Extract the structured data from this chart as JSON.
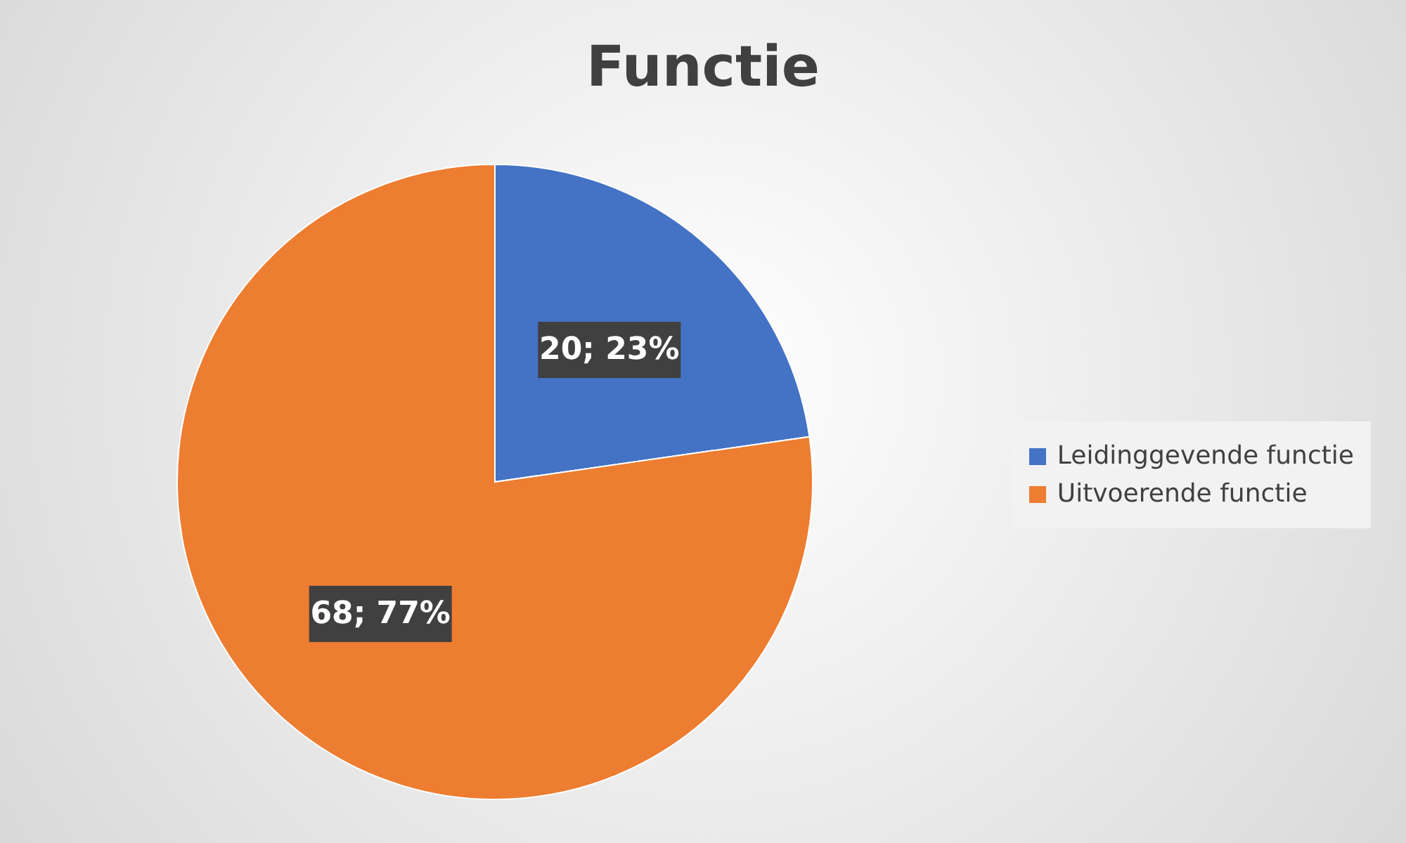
{
  "chart_data": {
    "type": "pie",
    "title": "Functie",
    "categories": [
      "Leidinggevende functie",
      "Uitvoerende functie"
    ],
    "values": [
      20,
      68
    ],
    "colors": [
      "#4472c4",
      "#ed7d31"
    ],
    "value_labels": [
      "20; 23%",
      "68; 77%"
    ],
    "legend": "right"
  }
}
